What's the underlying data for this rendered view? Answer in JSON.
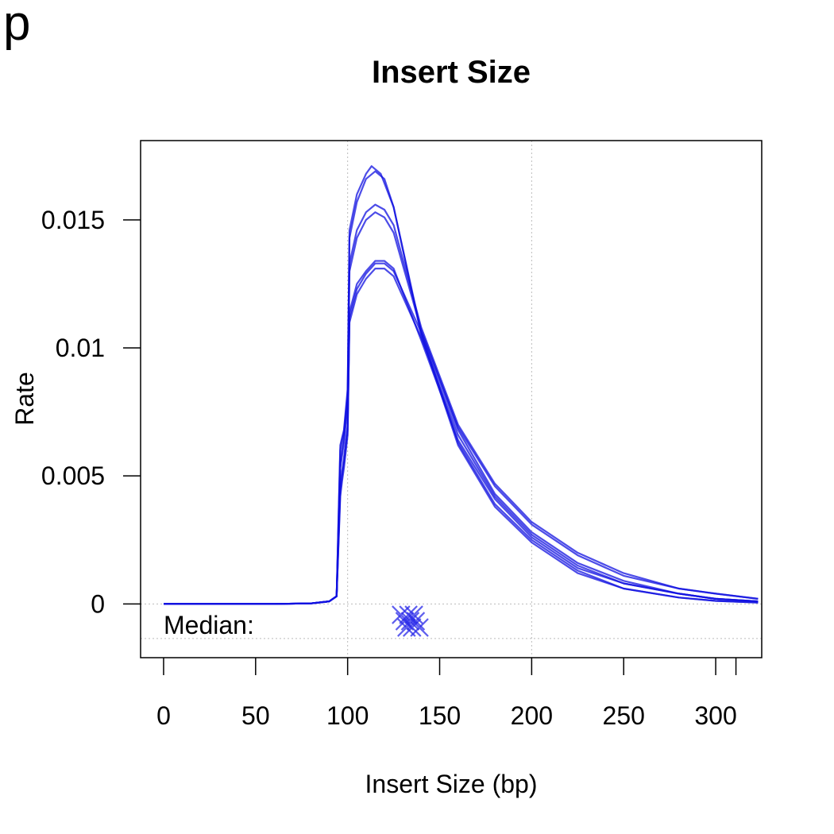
{
  "panel_letter": "p",
  "chart_data": {
    "type": "line",
    "title": "Insert Size",
    "xlabel": "Insert Size (bp)",
    "ylabel": "Rate",
    "xlim": [
      -12.5,
      325
    ],
    "ylim": [
      -0.0021,
      0.0181
    ],
    "x_ticks": [
      0,
      50,
      100,
      150,
      200,
      250,
      300,
      311
    ],
    "x_tick_labels": [
      "0",
      "50",
      "100",
      "150",
      "200",
      "250",
      "300"
    ],
    "y_ticks": [
      0,
      0.005,
      0.01,
      0.015
    ],
    "y_tick_labels": [
      "0",
      "0.005",
      "0.01",
      "0.015"
    ],
    "grid": {
      "vertical_at": [
        100,
        200
      ],
      "horizontal_at": [
        0,
        -0.00135
      ],
      "style": "dotted"
    },
    "line_color": "#1010e0",
    "median_label": "Median:",
    "median_values": [
      129,
      131,
      132,
      133,
      134,
      135,
      136,
      137,
      139
    ],
    "series": [
      {
        "x": [
          0,
          60,
          80,
          90,
          94,
          96,
          97,
          98,
          100,
          101,
          105,
          110,
          113,
          118,
          125,
          140,
          160,
          180,
          200,
          225,
          250,
          280,
          300,
          323
        ],
        "values": [
          0,
          0,
          2e-05,
          0.0001,
          0.0003,
          0.0062,
          0.0065,
          0.0068,
          0.0084,
          0.0146,
          0.016,
          0.0168,
          0.0171,
          0.0168,
          0.0155,
          0.0105,
          0.0062,
          0.0038,
          0.0024,
          0.0012,
          0.0006,
          0.00025,
          0.00012,
          5e-05
        ]
      },
      {
        "x": [
          0,
          60,
          80,
          90,
          94,
          96,
          97,
          98,
          100,
          101,
          105,
          110,
          115,
          120,
          125,
          140,
          160,
          180,
          200,
          225,
          250,
          280,
          300,
          323
        ],
        "values": [
          0,
          0,
          2e-05,
          0.0001,
          0.0003,
          0.006,
          0.0064,
          0.0067,
          0.0082,
          0.0143,
          0.0157,
          0.0166,
          0.0169,
          0.0166,
          0.0155,
          0.0106,
          0.0063,
          0.0039,
          0.0025,
          0.0013,
          0.0006,
          0.00025,
          0.00012,
          5e-05
        ]
      },
      {
        "x": [
          0,
          60,
          80,
          90,
          94,
          96,
          97,
          98,
          100,
          101,
          105,
          110,
          115,
          120,
          125,
          140,
          160,
          180,
          200,
          225,
          250,
          280,
          300,
          323
        ],
        "values": [
          0,
          0,
          2e-05,
          0.0001,
          0.0003,
          0.0055,
          0.006,
          0.0065,
          0.008,
          0.0133,
          0.0146,
          0.0153,
          0.0156,
          0.0154,
          0.0148,
          0.0108,
          0.007,
          0.0047,
          0.0032,
          0.002,
          0.0012,
          0.0006,
          0.0004,
          0.0002
        ]
      },
      {
        "x": [
          0,
          60,
          80,
          90,
          94,
          96,
          97,
          98,
          100,
          101,
          105,
          110,
          115,
          120,
          125,
          140,
          160,
          180,
          200,
          225,
          250,
          280,
          300,
          323
        ],
        "values": [
          0,
          0,
          2e-05,
          0.0001,
          0.0003,
          0.0053,
          0.0058,
          0.0063,
          0.0078,
          0.013,
          0.0143,
          0.015,
          0.0153,
          0.0151,
          0.0145,
          0.0107,
          0.0069,
          0.0046,
          0.0031,
          0.0019,
          0.0011,
          0.0006,
          0.0004,
          0.0002
        ]
      },
      {
        "x": [
          0,
          60,
          80,
          90,
          94,
          96,
          97,
          98,
          100,
          101,
          105,
          110,
          115,
          120,
          125,
          140,
          160,
          180,
          200,
          225,
          250,
          280,
          300,
          323
        ],
        "values": [
          0,
          0,
          2e-05,
          0.0001,
          0.0003,
          0.0046,
          0.0052,
          0.0057,
          0.007,
          0.0112,
          0.0123,
          0.0129,
          0.0133,
          0.0133,
          0.013,
          0.0106,
          0.0068,
          0.0043,
          0.0028,
          0.0016,
          0.0009,
          0.0004,
          0.0002,
          0.0001
        ]
      },
      {
        "x": [
          0,
          60,
          80,
          90,
          94,
          96,
          97,
          98,
          100,
          101,
          105,
          110,
          115,
          120,
          125,
          140,
          160,
          180,
          200,
          225,
          250,
          280,
          300,
          323
        ],
        "values": [
          0,
          0,
          2e-05,
          0.0001,
          0.0003,
          0.0044,
          0.005,
          0.0055,
          0.0068,
          0.011,
          0.0121,
          0.0127,
          0.0131,
          0.0131,
          0.0128,
          0.0104,
          0.0066,
          0.0042,
          0.0027,
          0.0015,
          0.0008,
          0.0004,
          0.0002,
          0.0001
        ]
      },
      {
        "x": [
          0,
          60,
          80,
          90,
          94,
          96,
          97,
          98,
          100,
          101,
          105,
          110,
          115,
          120,
          125,
          140,
          160,
          180,
          200,
          225,
          250,
          280,
          300,
          323
        ],
        "values": [
          0,
          0,
          2e-05,
          0.0001,
          0.0003,
          0.0042,
          0.0048,
          0.0053,
          0.0066,
          0.0114,
          0.0125,
          0.013,
          0.0134,
          0.0134,
          0.0131,
          0.0103,
          0.0064,
          0.0041,
          0.0026,
          0.0014,
          0.0008,
          0.0004,
          0.0002,
          0.0001
        ]
      }
    ]
  }
}
